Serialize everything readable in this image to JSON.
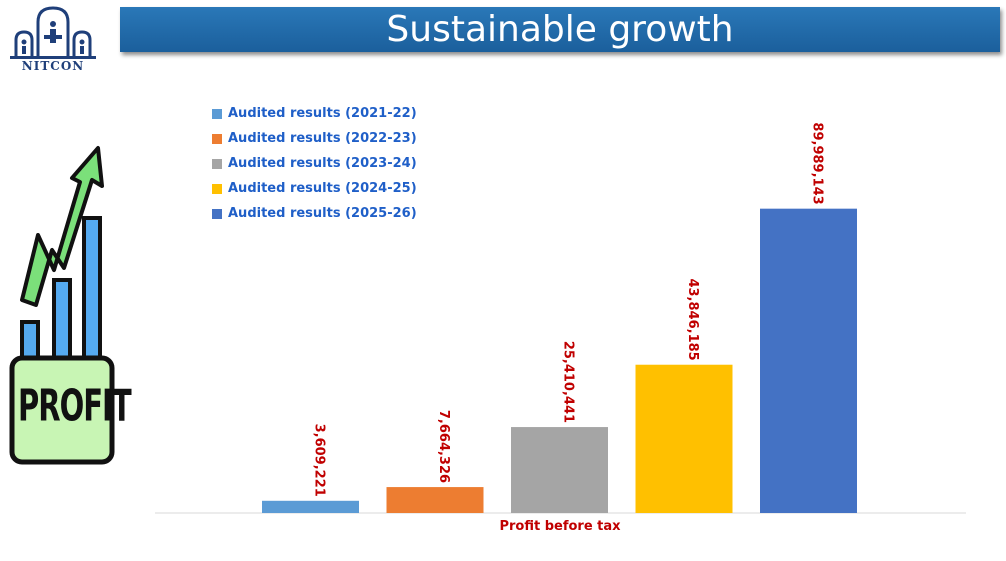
{
  "header": {
    "title": "Sustainable growth",
    "logo_text": "NITCON"
  },
  "illustration": {
    "profit_text": "PROFIT"
  },
  "chart_data": {
    "type": "bar",
    "title": "",
    "xlabel": "Profit before tax",
    "ylabel": "",
    "categories": [
      "Profit before tax"
    ],
    "ylim": [
      0,
      110000000
    ],
    "grid": false,
    "legend": "top-left",
    "series": [
      {
        "name": "Audited results (2021-22)",
        "values": [
          3609221
        ],
        "label": "3,609,221",
        "color": "#5b9bd5"
      },
      {
        "name": "Audited results (2022-23)",
        "values": [
          7664326
        ],
        "label": "7,664,326",
        "color": "#ed7d31"
      },
      {
        "name": "Audited results (2023-24)",
        "values": [
          25410441
        ],
        "label": "25,410,441",
        "color": "#a5a5a5"
      },
      {
        "name": "Audited results (2024-25)",
        "values": [
          43846185
        ],
        "label": "43,846,185",
        "color": "#ffc000"
      },
      {
        "name": "Audited results (2025-26)",
        "values": [
          89989143
        ],
        "label": "89,989,143",
        "color": "#4472c4"
      }
    ]
  }
}
